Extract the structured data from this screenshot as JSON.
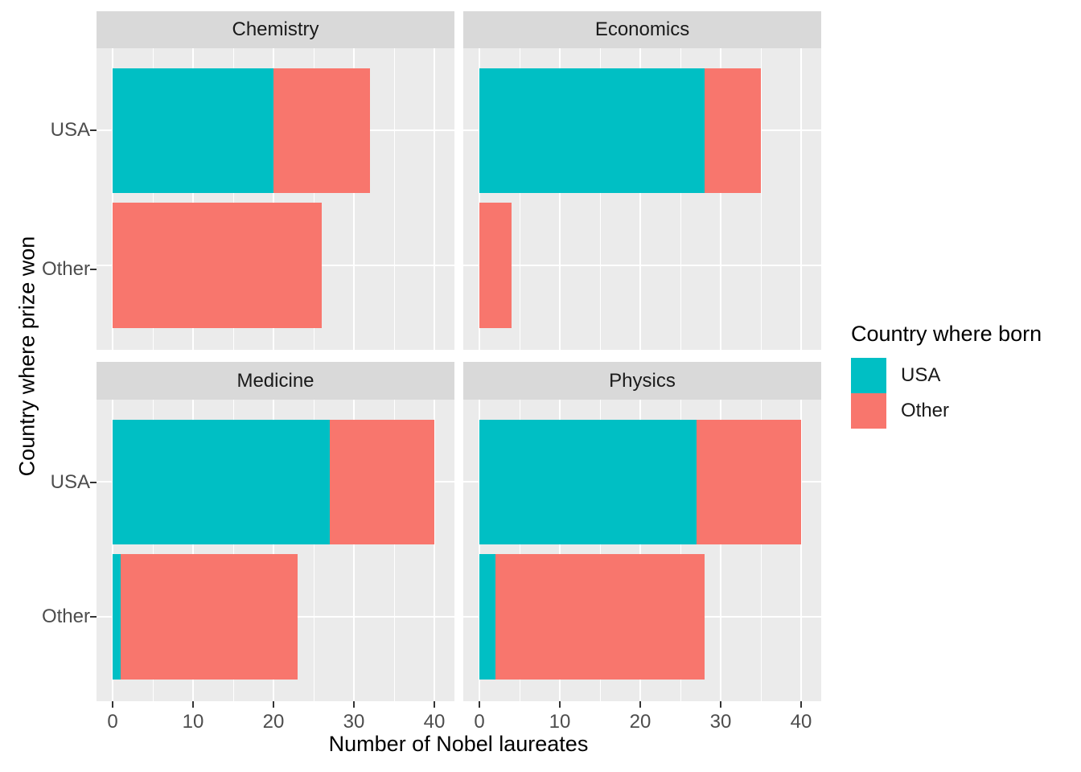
{
  "chart_data": {
    "type": "bar",
    "orientation": "horizontal",
    "stacked": true,
    "title": "",
    "xlabel": "Number of Nobel laureates",
    "ylabel": "Country where prize won",
    "x_ticks": [
      0,
      10,
      20,
      30,
      40
    ],
    "xlim": [
      0,
      40
    ],
    "grid": "on",
    "y_categories": [
      "USA",
      "Other"
    ],
    "series": [
      {
        "name": "USA",
        "color": "#00BFC4"
      },
      {
        "name": "Other",
        "color": "#F8766D"
      }
    ],
    "facets": [
      {
        "label": "Chemistry",
        "rows": [
          {
            "category": "USA",
            "values": [
              20,
              12
            ]
          },
          {
            "category": "Other",
            "values": [
              0,
              26
            ]
          }
        ]
      },
      {
        "label": "Economics",
        "rows": [
          {
            "category": "USA",
            "values": [
              28,
              7
            ]
          },
          {
            "category": "Other",
            "values": [
              0,
              4
            ]
          }
        ]
      },
      {
        "label": "Medicine",
        "rows": [
          {
            "category": "USA",
            "values": [
              27,
              13
            ]
          },
          {
            "category": "Other",
            "values": [
              1,
              22
            ]
          }
        ]
      },
      {
        "label": "Physics",
        "rows": [
          {
            "category": "USA",
            "values": [
              27,
              13
            ]
          },
          {
            "category": "Other",
            "values": [
              2,
              26
            ]
          }
        ]
      }
    ],
    "legend": {
      "title": "Country where born",
      "position": "right",
      "entries": [
        {
          "label": "USA",
          "color": "#00BFC4"
        },
        {
          "label": "Other",
          "color": "#F8766D"
        }
      ]
    },
    "colors": {
      "panel_background": "#EBEBEB",
      "strip_background": "#D9D9D9",
      "gridline": "#FFFFFF",
      "axis_text": "#4D4D4D",
      "tick_mark": "#333333"
    }
  }
}
